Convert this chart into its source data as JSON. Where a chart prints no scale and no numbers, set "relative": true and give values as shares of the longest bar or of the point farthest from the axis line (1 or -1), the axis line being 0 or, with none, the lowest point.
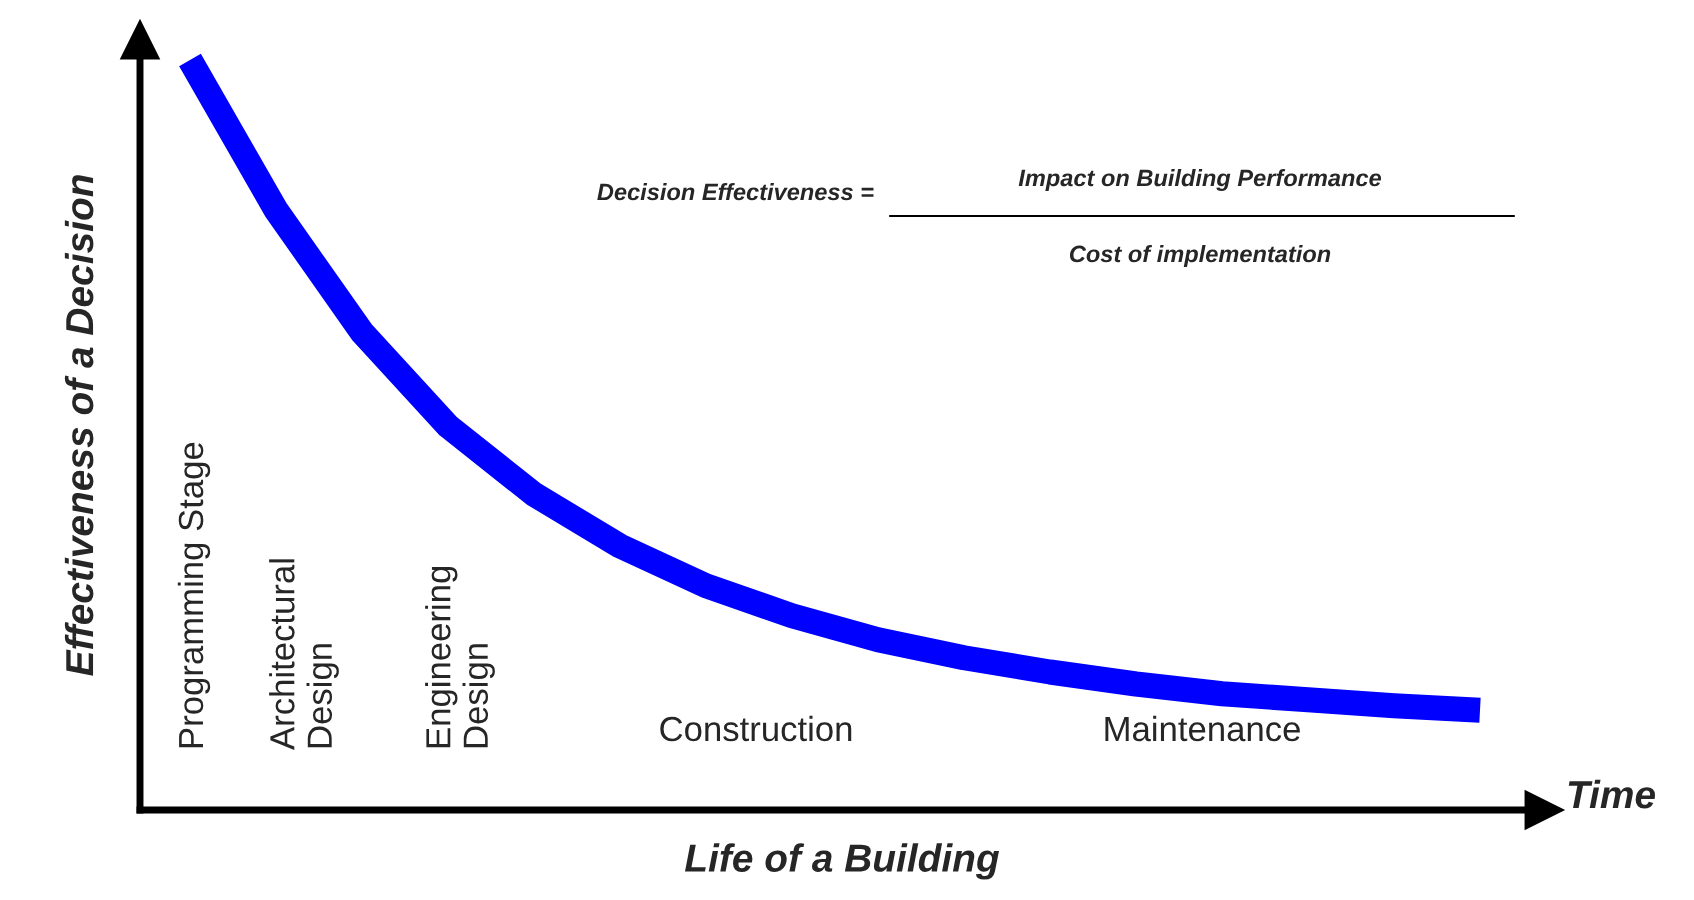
{
  "chart_data": {
    "type": "line",
    "relative": true,
    "tick_labels": false,
    "grid": false,
    "marker": "none",
    "line_style": "solid",
    "xlabel": "Life of a Building",
    "ylabel": "Effectiveness of a Decision",
    "categories": [
      null,
      null,
      null,
      null,
      null,
      null,
      null,
      null,
      null,
      null,
      null,
      null,
      null,
      null,
      null,
      null
    ],
    "series": [
      {
        "color": "#0000ff",
        "values": [
          1.0,
          0.8,
          0.637,
          0.512,
          0.421,
          0.352,
          0.299,
          0.259,
          0.227,
          0.203,
          0.184,
          0.168,
          0.155,
          0.147,
          0.139,
          0.133
        ]
      }
    ],
    "annotations": [
      "Time",
      "Decision Effectiveness =",
      "Impact on Building Performance",
      "Cost of implementation",
      "Programming Stage",
      "Architectural\nDesign",
      "Engineering\nDesign",
      "Construction",
      "Maintenance"
    ]
  }
}
